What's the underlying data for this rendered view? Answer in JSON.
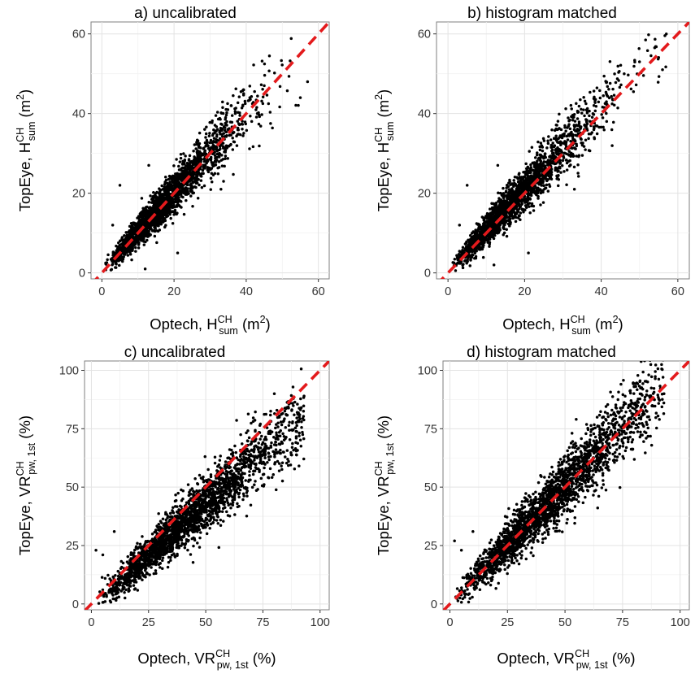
{
  "chart_data": [
    {
      "type": "scatter",
      "title": "a) uncalibrated",
      "xlabel": {
        "prefix": "Optech, ",
        "sym": "H",
        "sup": "CH",
        "sub": "sum",
        "unit_pre": " (m",
        "unit_sup": "2",
        "unit_post": ")"
      },
      "ylabel": {
        "prefix": "TopEye, ",
        "sym": "H",
        "sup": "CH",
        "sub": "sum",
        "unit_pre": " (m",
        "unit_sup": "2",
        "unit_post": ")"
      },
      "xlim": [
        -3,
        63
      ],
      "ylim": [
        -1.5,
        63
      ],
      "xticks": [
        0,
        20,
        40,
        60
      ],
      "yticks": [
        0,
        20,
        40,
        60
      ],
      "tick_labels": [
        "0",
        "20",
        "40",
        "60"
      ],
      "reference_line": {
        "slope": 1,
        "intercept": 0,
        "style": "dashed",
        "color": "#e31a1c"
      },
      "point_color": "#000000",
      "grid": true,
      "points": {
        "n": 2200,
        "x_mode": 13,
        "x_max": 57,
        "slope": 1.0,
        "offset": 0.3,
        "noise": 0.08,
        "noise_floor": 1.0,
        "seed": 11
      },
      "outliers": [
        [
          5,
          22
        ],
        [
          12,
          1
        ],
        [
          21,
          5
        ],
        [
          33,
          21
        ],
        [
          55,
          44
        ],
        [
          57,
          48
        ],
        [
          45,
          47
        ],
        [
          41,
          44
        ],
        [
          13,
          27
        ],
        [
          3,
          12
        ]
      ]
    },
    {
      "type": "scatter",
      "title": "b) histogram matched",
      "xlabel": {
        "prefix": "Optech, ",
        "sym": "H",
        "sup": "CH",
        "sub": "sum",
        "unit_pre": " (m",
        "unit_sup": "2",
        "unit_post": ")"
      },
      "ylabel": {
        "prefix": "TopEye, ",
        "sym": "H",
        "sup": "CH",
        "sub": "sum",
        "unit_pre": " (m",
        "unit_sup": "2",
        "unit_post": ")"
      },
      "xlim": [
        -3,
        63
      ],
      "ylim": [
        -1.5,
        63
      ],
      "xticks": [
        0,
        20,
        40,
        60
      ],
      "yticks": [
        0,
        20,
        40,
        60
      ],
      "tick_labels": [
        "0",
        "20",
        "40",
        "60"
      ],
      "reference_line": {
        "slope": 1,
        "intercept": 0,
        "style": "dashed",
        "color": "#e31a1c"
      },
      "point_color": "#000000",
      "grid": true,
      "points": {
        "n": 2200,
        "x_mode": 13,
        "x_max": 57,
        "slope": 1.03,
        "offset": 0.5,
        "noise": 0.08,
        "noise_floor": 1.0,
        "seed": 23
      },
      "outliers": [
        [
          5,
          22
        ],
        [
          12,
          2
        ],
        [
          21,
          5
        ],
        [
          33,
          21
        ],
        [
          56,
          51
        ],
        [
          57,
          60
        ],
        [
          50,
          53
        ],
        [
          46,
          50
        ],
        [
          13,
          27
        ],
        [
          3,
          12
        ]
      ]
    },
    {
      "type": "scatter",
      "title": "c) uncalibrated",
      "xlabel": {
        "prefix": "Optech, ",
        "sym": "VR",
        "sup": "CH",
        "sub": "pw, 1st",
        "unit_pre": " (%)",
        "unit_sup": "",
        "unit_post": ""
      },
      "ylabel": {
        "prefix": "TopEye, ",
        "sym": "VR",
        "sup": "CH",
        "sub": "pw, 1st",
        "unit_pre": " (%)",
        "unit_sup": "",
        "unit_post": ""
      },
      "xlim": [
        -3,
        104
      ],
      "ylim": [
        -2.5,
        104
      ],
      "xticks": [
        0,
        25,
        50,
        75,
        100
      ],
      "yticks": [
        0,
        25,
        50,
        75,
        100
      ],
      "tick_labels": [
        "0",
        "25",
        "50",
        "75",
        "100"
      ],
      "reference_line": {
        "slope": 1,
        "intercept": 0,
        "style": "dashed",
        "color": "#e31a1c"
      },
      "point_color": "#000000",
      "grid": true,
      "points": {
        "n": 2300,
        "x_mode": 35,
        "x_max": 93,
        "slope": 0.88,
        "offset": -1.0,
        "noise": 0.07,
        "noise_floor": 2.5,
        "seed": 37
      },
      "outliers": [
        [
          2,
          23
        ],
        [
          5,
          21
        ],
        [
          10,
          31
        ],
        [
          93,
          89
        ],
        [
          90,
          82
        ],
        [
          80,
          90
        ],
        [
          88,
          78
        ]
      ]
    },
    {
      "type": "scatter",
      "title": "d) histogram matched",
      "xlabel": {
        "prefix": "Optech, ",
        "sym": "VR",
        "sup": "CH",
        "sub": "pw, 1st",
        "unit_pre": " (%)",
        "unit_sup": "",
        "unit_post": ""
      },
      "ylabel": {
        "prefix": "TopEye, ",
        "sym": "VR",
        "sup": "CH",
        "sub": "pw, 1st",
        "unit_pre": " (%)",
        "unit_sup": "",
        "unit_post": ""
      },
      "xlim": [
        -3,
        104
      ],
      "ylim": [
        -2.5,
        104
      ],
      "xticks": [
        0,
        25,
        50,
        75,
        100
      ],
      "yticks": [
        0,
        25,
        50,
        75,
        100
      ],
      "tick_labels": [
        "0",
        "25",
        "50",
        "75",
        "100"
      ],
      "reference_line": {
        "slope": 1,
        "intercept": 0,
        "style": "dashed",
        "color": "#e31a1c"
      },
      "point_color": "#000000",
      "grid": true,
      "points": {
        "n": 2300,
        "x_mode": 35,
        "x_max": 93,
        "slope": 1.0,
        "offset": 0.5,
        "noise": 0.08,
        "noise_floor": 2.5,
        "seed": 53
      },
      "outliers": [
        [
          2,
          27
        ],
        [
          5,
          23
        ],
        [
          10,
          31
        ],
        [
          93,
          90
        ],
        [
          91,
          79
        ],
        [
          80,
          93
        ],
        [
          87,
          87
        ]
      ]
    }
  ]
}
